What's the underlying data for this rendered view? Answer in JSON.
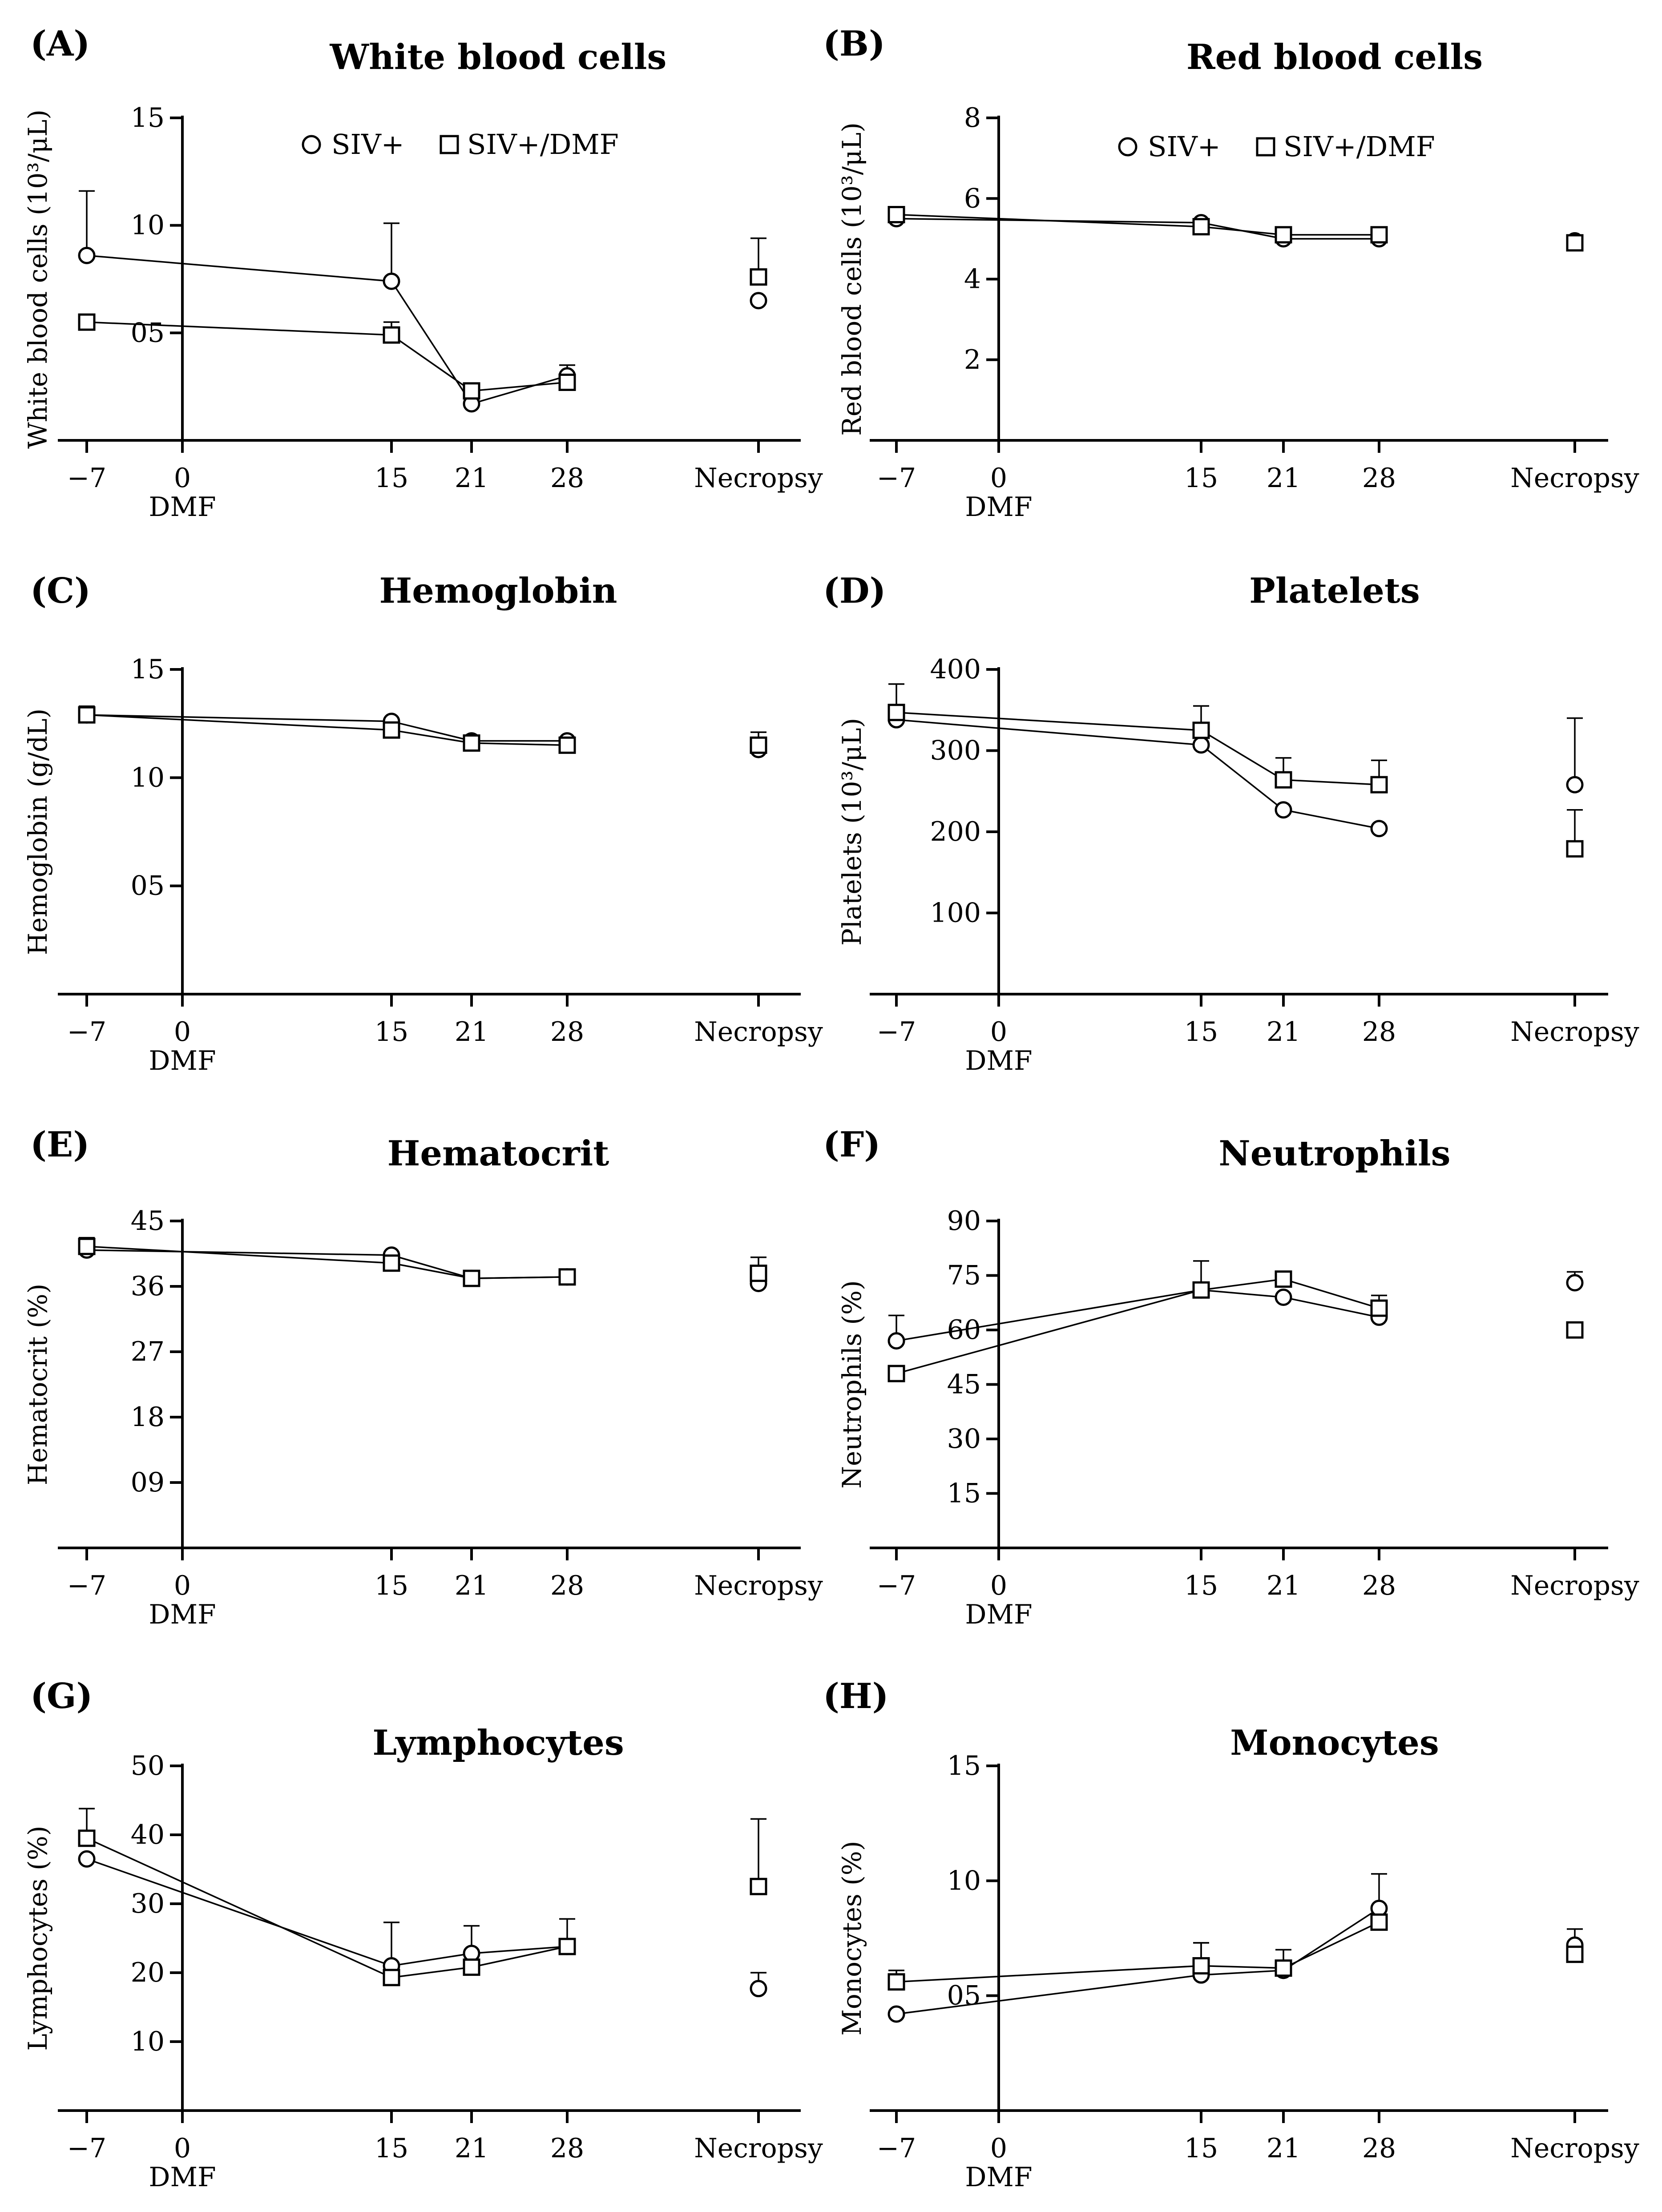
{
  "figure": {
    "legend": {
      "series_a": "SIV+",
      "series_b": "SIV+/DMF"
    },
    "x_labels": [
      "−7",
      "0",
      "15",
      "21",
      "28",
      "Necropsy"
    ],
    "x_sublabel": "DMF"
  },
  "chart_data": [
    {
      "id": "A",
      "panel_label": "(A)",
      "type": "line",
      "title": "White blood cells",
      "ylabel": "White blood cells (10³/μL)",
      "ylim": [
        0,
        15
      ],
      "yticks": [
        5,
        10,
        15
      ],
      "ytick_labels": [
        "05",
        "10",
        "15"
      ],
      "x": [
        "−7",
        "15",
        "21",
        "28",
        "Necropsy"
      ],
      "show_legend": true,
      "series": [
        {
          "name": "SIV+",
          "marker": "circle",
          "values": [
            8.6,
            7.4,
            1.7,
            3.0,
            6.5
          ],
          "err": [
            3.0,
            2.7,
            0,
            0.5,
            0
          ]
        },
        {
          "name": "SIV+/DMF",
          "marker": "square",
          "values": [
            5.5,
            4.9,
            2.3,
            2.7,
            7.6
          ],
          "err": [
            0,
            0.6,
            0,
            0,
            1.8
          ]
        }
      ]
    },
    {
      "id": "B",
      "panel_label": "(B)",
      "type": "line",
      "title": "Red blood cells",
      "ylabel": "Red blood cells (10³/μL)",
      "ylim": [
        0,
        8
      ],
      "yticks": [
        2,
        4,
        6,
        8
      ],
      "ytick_labels": [
        "2",
        "4",
        "6",
        "8"
      ],
      "x": [
        "−7",
        "15",
        "21",
        "28",
        "Necropsy"
      ],
      "show_legend": true,
      "series": [
        {
          "name": "SIV+",
          "marker": "circle",
          "values": [
            5.5,
            5.4,
            5.0,
            5.0,
            4.95
          ],
          "err": [
            0,
            0,
            0,
            0,
            0
          ]
        },
        {
          "name": "SIV+/DMF",
          "marker": "square",
          "values": [
            5.6,
            5.3,
            5.1,
            5.1,
            4.9
          ],
          "err": [
            0,
            0,
            0,
            0,
            0
          ]
        }
      ]
    },
    {
      "id": "C",
      "panel_label": "(C)",
      "type": "line",
      "title": "Hemoglobin",
      "ylabel": "Hemoglobin (g/dL)",
      "ylim": [
        0,
        15
      ],
      "yticks": [
        5,
        10,
        15
      ],
      "ytick_labels": [
        "05",
        "10",
        "15"
      ],
      "x": [
        "−7",
        "15",
        "21",
        "28",
        "Necropsy"
      ],
      "show_legend": false,
      "series": [
        {
          "name": "SIV+",
          "marker": "circle",
          "values": [
            12.9,
            12.6,
            11.7,
            11.7,
            11.3
          ],
          "err": [
            0.3,
            0,
            0.2,
            0,
            0
          ]
        },
        {
          "name": "SIV+/DMF",
          "marker": "square",
          "values": [
            12.9,
            12.2,
            11.6,
            11.5,
            11.5
          ],
          "err": [
            0.4,
            0,
            0,
            0,
            0.6
          ]
        }
      ]
    },
    {
      "id": "D",
      "panel_label": "(D)",
      "type": "line",
      "title": "Platelets",
      "ylabel": "Platelets (10³/μL)",
      "ylim": [
        0,
        400
      ],
      "yticks": [
        100,
        200,
        300,
        400
      ],
      "ytick_labels": [
        "100",
        "200",
        "300",
        "400"
      ],
      "x": [
        "−7",
        "15",
        "21",
        "28",
        "Necropsy"
      ],
      "show_legend": false,
      "series": [
        {
          "name": "SIV+",
          "marker": "circle",
          "values": [
            338,
            307,
            227,
            204,
            258
          ],
          "err": [
            0,
            0,
            0,
            0,
            82
          ]
        },
        {
          "name": "SIV+/DMF",
          "marker": "square",
          "values": [
            347,
            325,
            264,
            258,
            179
          ],
          "err": [
            35,
            30,
            27,
            30,
            48
          ]
        }
      ]
    },
    {
      "id": "E",
      "panel_label": "(E)",
      "type": "line",
      "title": "Hematocrit",
      "ylabel": "Hematocrit (%)",
      "ylim": [
        0,
        45
      ],
      "yticks": [
        9,
        18,
        27,
        36,
        45
      ],
      "ytick_labels": [
        "09",
        "18",
        "27",
        "36",
        "45"
      ],
      "x": [
        "−7",
        "15",
        "21",
        "28",
        "Necropsy"
      ],
      "show_legend": false,
      "series": [
        {
          "name": "SIV+",
          "marker": "circle",
          "values": [
            41.0,
            40.3,
            37.1,
            37.3,
            36.4
          ],
          "err": [
            0,
            0,
            0,
            0,
            0
          ]
        },
        {
          "name": "SIV+/DMF",
          "marker": "square",
          "values": [
            41.5,
            39.2,
            37.1,
            37.3,
            37.8
          ],
          "err": [
            1.2,
            0,
            0,
            0,
            2.2
          ]
        }
      ]
    },
    {
      "id": "F",
      "panel_label": "(F)",
      "type": "line",
      "title": "Neutrophils",
      "ylabel": "Neutrophils (%)",
      "ylim": [
        0,
        90
      ],
      "yticks": [
        15,
        30,
        45,
        60,
        75,
        90
      ],
      "ytick_labels": [
        "15",
        "30",
        "45",
        "60",
        "75",
        "90"
      ],
      "x": [
        "−7",
        "15",
        "21",
        "28",
        "Necropsy"
      ],
      "show_legend": false,
      "series": [
        {
          "name": "SIV+",
          "marker": "circle",
          "values": [
            57,
            71,
            69,
            63.5,
            73
          ],
          "err": [
            7,
            0,
            0,
            0,
            3
          ]
        },
        {
          "name": "SIV+/DMF",
          "marker": "square",
          "values": [
            48,
            71,
            74,
            66,
            60
          ],
          "err": [
            0,
            8,
            2,
            3.5,
            0
          ]
        }
      ]
    },
    {
      "id": "G",
      "panel_label": "(G)",
      "type": "line",
      "title": "Lymphocytes",
      "ylabel": "Lymphocytes (%)",
      "ylim": [
        0,
        50
      ],
      "yticks": [
        10,
        20,
        30,
        40,
        50
      ],
      "ytick_labels": [
        "10",
        "20",
        "30",
        "40",
        "50"
      ],
      "x": [
        "−7",
        "15",
        "21",
        "28",
        "Necropsy"
      ],
      "show_legend": false,
      "series": [
        {
          "name": "SIV+",
          "marker": "circle",
          "values": [
            36.5,
            21.0,
            22.8,
            23.8,
            17.7
          ],
          "err": [
            0,
            6.3,
            4.0,
            0,
            2.3
          ]
        },
        {
          "name": "SIV+/DMF",
          "marker": "square",
          "values": [
            39.5,
            19.3,
            20.8,
            23.8,
            32.5
          ],
          "err": [
            4.3,
            0,
            0,
            4.0,
            9.8
          ]
        }
      ]
    },
    {
      "id": "H",
      "panel_label": "(H)",
      "type": "line",
      "title": "Monocytes",
      "ylabel": "Monocytes (%)",
      "ylim": [
        0,
        15
      ],
      "yticks": [
        5,
        10,
        15
      ],
      "ytick_labels": [
        "05",
        "10",
        "15"
      ],
      "x": [
        "−7",
        "15",
        "21",
        "28",
        "Necropsy"
      ],
      "show_legend": false,
      "series": [
        {
          "name": "SIV+",
          "marker": "circle",
          "values": [
            4.2,
            5.9,
            6.1,
            8.8,
            7.2
          ],
          "err": [
            0,
            1.4,
            0,
            1.5,
            0.7
          ]
        },
        {
          "name": "SIV+/DMF",
          "marker": "square",
          "values": [
            5.6,
            6.3,
            6.2,
            8.2,
            6.8
          ],
          "err": [
            0.5,
            1.0,
            0.8,
            0,
            0
          ]
        }
      ]
    }
  ]
}
